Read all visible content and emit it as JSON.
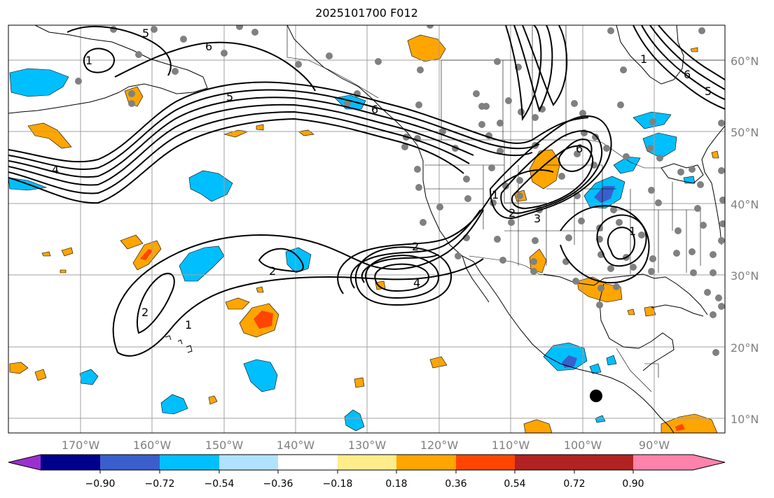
{
  "title": "2025101700 F012",
  "lat_labels": [
    {
      "deg": 60,
      "text": "60°N"
    },
    {
      "deg": 50,
      "text": "50°N"
    },
    {
      "deg": 40,
      "text": "40°N"
    },
    {
      "deg": 30,
      "text": "30°N"
    },
    {
      "deg": 20,
      "text": "20°N"
    },
    {
      "deg": 10,
      "text": "10°N"
    }
  ],
  "lon_labels": [
    {
      "deg": -170,
      "text": "170°W"
    },
    {
      "deg": -160,
      "text": "160°W"
    },
    {
      "deg": -150,
      "text": "150°W"
    },
    {
      "deg": -140,
      "text": "140°W"
    },
    {
      "deg": -130,
      "text": "130°W"
    },
    {
      "deg": -120,
      "text": "120°W"
    },
    {
      "deg": -110,
      "text": "110°W"
    },
    {
      "deg": -100,
      "text": "100°W"
    },
    {
      "deg": -90,
      "text": "90°W"
    }
  ],
  "colorbar": {
    "ticks": [
      "−0.90",
      "−0.72",
      "−0.54",
      "−0.36",
      "−0.18",
      "0.18",
      "0.36",
      "0.54",
      "0.72",
      "0.90"
    ],
    "colors": [
      "#9b30d0",
      "#00008b",
      "#3a5fcd",
      "#00bfff",
      "#b0e2ff",
      "#ffffff",
      "#ffec8b",
      "#ffa500",
      "#ff4500",
      "#b22222",
      "#ff82ab"
    ]
  },
  "contour_labels": [
    "5",
    "6",
    "5",
    "4",
    "1",
    "6",
    "6",
    "5",
    "6",
    "3",
    "2",
    "2",
    "4",
    "2",
    "1",
    "1",
    "1",
    "2",
    "1"
  ],
  "colors": {
    "contour": "#000000",
    "station": "#808080",
    "marker": "#000000",
    "grid": "#a0a0a0",
    "coast": "#000000"
  }
}
